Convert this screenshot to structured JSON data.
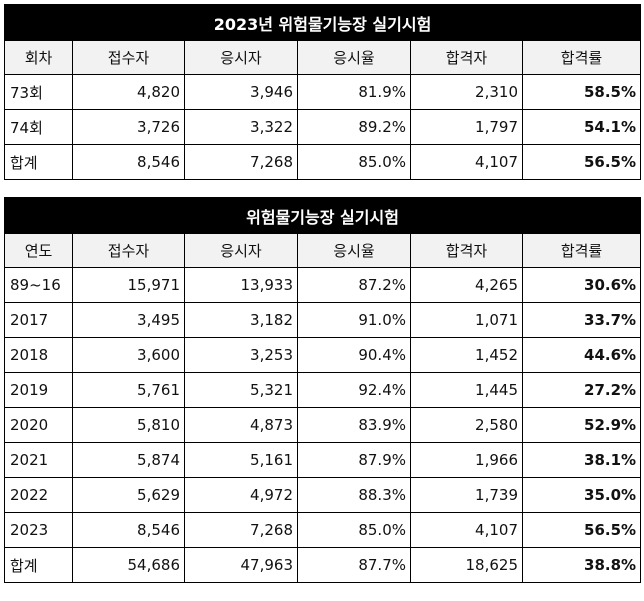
{
  "table1": {
    "title": "2023년 위험물기능장 실기시험",
    "headers": [
      "회차",
      "접수자",
      "응시자",
      "응시율",
      "합격자",
      "합격률"
    ],
    "rows": [
      [
        "73회",
        "4,820",
        "3,946",
        "81.9%",
        "2,310",
        "58.5%"
      ],
      [
        "74회",
        "3,726",
        "3,322",
        "89.2%",
        "1,797",
        "54.1%"
      ],
      [
        "합계",
        "8,546",
        "7,268",
        "85.0%",
        "4,107",
        "56.5%"
      ]
    ]
  },
  "table2": {
    "title": "위험물기능장 실기시험",
    "headers": [
      "연도",
      "접수자",
      "응시자",
      "응시율",
      "합격자",
      "합격률"
    ],
    "rows": [
      [
        "89~16",
        "15,971",
        "13,933",
        "87.2%",
        "4,265",
        "30.6%"
      ],
      [
        "2017",
        "3,495",
        "3,182",
        "91.0%",
        "1,071",
        "33.7%"
      ],
      [
        "2018",
        "3,600",
        "3,253",
        "90.4%",
        "1,452",
        "44.6%"
      ],
      [
        "2019",
        "5,761",
        "5,321",
        "92.4%",
        "1,445",
        "27.2%"
      ],
      [
        "2020",
        "5,810",
        "4,873",
        "83.9%",
        "2,580",
        "52.9%"
      ],
      [
        "2021",
        "5,874",
        "5,161",
        "87.9%",
        "1,966",
        "38.1%"
      ],
      [
        "2022",
        "5,629",
        "4,972",
        "88.3%",
        "1,739",
        "35.0%"
      ],
      [
        "2023",
        "8,546",
        "7,268",
        "85.0%",
        "4,107",
        "56.5%"
      ],
      [
        "합계",
        "54,686",
        "47,963",
        "87.7%",
        "18,625",
        "38.8%"
      ]
    ]
  }
}
